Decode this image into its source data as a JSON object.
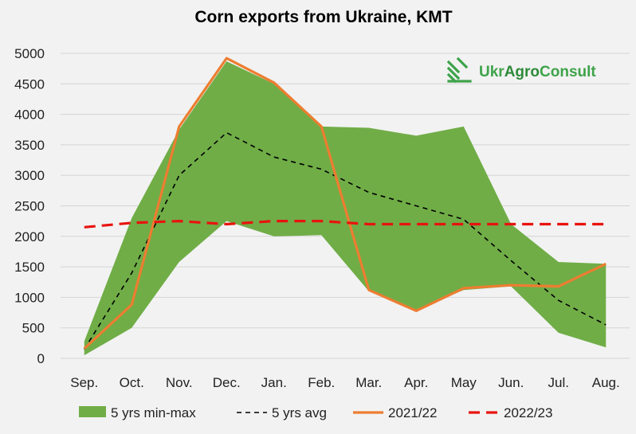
{
  "chart_data": {
    "type": "line",
    "title": "Corn exports from Ukraine, KMT",
    "xlabel": "",
    "ylabel": "",
    "categories": [
      "Sep.",
      "Oct.",
      "Nov.",
      "Dec.",
      "Jan.",
      "Feb.",
      "Mar.",
      "Apr.",
      "May",
      "Jun.",
      "Jul.",
      "Aug."
    ],
    "ylim": [
      0,
      5000
    ],
    "yticks": [
      "0",
      "500",
      "1000",
      "1500",
      "2000",
      "2500",
      "3000",
      "3500",
      "4000",
      "4500",
      "5000"
    ],
    "ytick_values": [
      0,
      500,
      1000,
      1500,
      2000,
      2500,
      3000,
      3500,
      4000,
      4500,
      5000
    ],
    "grid": "horizontal",
    "legend_position": "bottom",
    "band": {
      "name": "5 yrs min-max",
      "color": "#70ad47",
      "min": [
        50,
        500,
        1580,
        2250,
        2000,
        2020,
        1100,
        800,
        1120,
        1180,
        420,
        180
      ],
      "max": [
        280,
        2300,
        3750,
        4870,
        4500,
        3800,
        3780,
        3650,
        3800,
        2200,
        1580,
        1550
      ]
    },
    "series": [
      {
        "name": "5 yrs avg",
        "color": "#000000",
        "style": "dashed-thin",
        "values": [
          150,
          1400,
          3000,
          3700,
          3300,
          3100,
          2720,
          2500,
          2280,
          1600,
          950,
          550
        ]
      },
      {
        "name": "2021/22",
        "color": "#ed7d31",
        "style": "solid",
        "values": [
          160,
          880,
          3800,
          4920,
          4520,
          3800,
          1120,
          780,
          1150,
          1200,
          1180,
          1550
        ]
      },
      {
        "name": "2022/23",
        "color": "#e8130f",
        "style": "dashed-thick",
        "values": [
          2150,
          2220,
          2250,
          2200,
          2250,
          2250,
          2200,
          2200,
          2200,
          2200,
          2200,
          2200
        ]
      }
    ]
  },
  "logo": {
    "prefix": "Ukr",
    "accent": "Agro",
    "suffix": "Consult",
    "color": "#3ea34a"
  }
}
